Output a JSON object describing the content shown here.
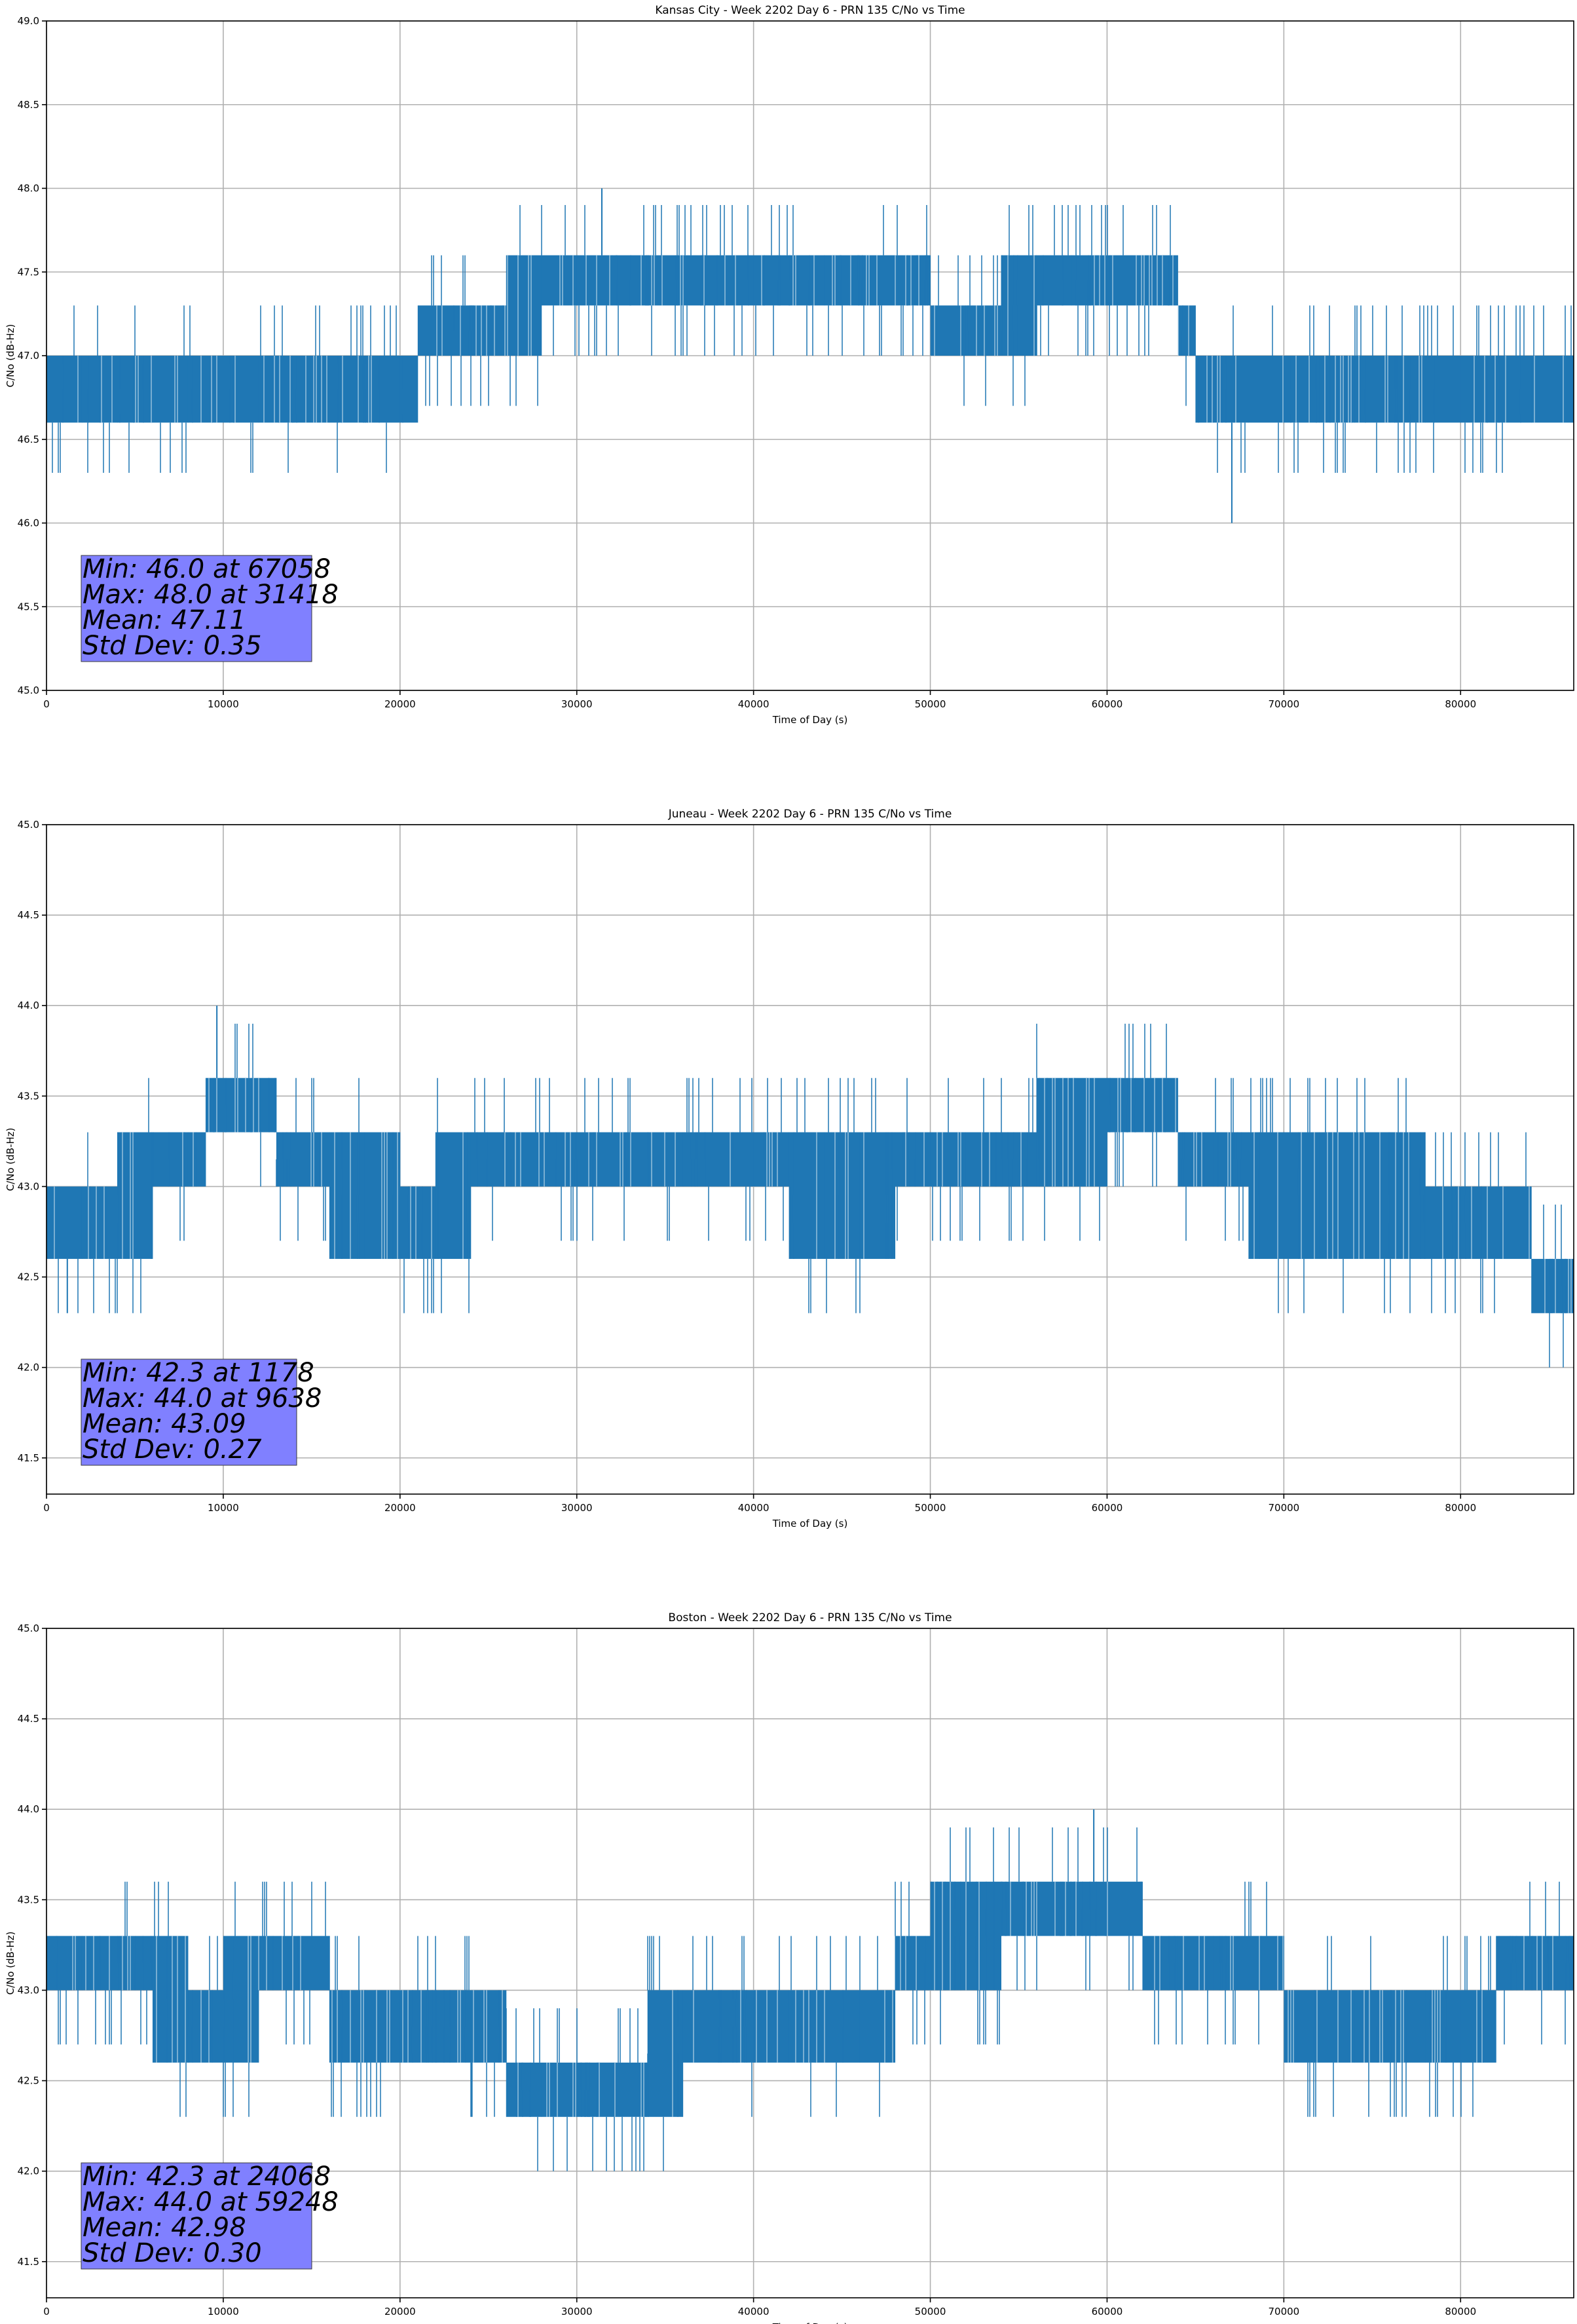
{
  "chart_data": [
    {
      "type": "line",
      "title": "Kansas City - Week 2202 Day 6 - PRN 135 C/No vs Time",
      "xlabel": "Time of Day (s)",
      "ylabel": "C/No (dB-Hz)",
      "xlim": [
        0,
        86400
      ],
      "ylim": [
        45.0,
        49.0
      ],
      "xticks": [
        "0",
        "10000",
        "20000",
        "30000",
        "40000",
        "50000",
        "60000",
        "70000",
        "80000"
      ],
      "yticks": [
        "45.0",
        "45.5",
        "46.0",
        "46.5",
        "47.0",
        "47.5",
        "48.0",
        "48.5",
        "49.0"
      ],
      "grid": true,
      "line_color": "#1f77b4",
      "series": [
        {
          "x": [
            0,
            2000,
            4000,
            6000,
            8000,
            10000,
            12000,
            14000,
            16000,
            18000,
            20000,
            21000,
            22000,
            24000,
            26000,
            28000,
            30000,
            32000,
            34000,
            36000,
            38000,
            40000,
            42000,
            44000,
            46000,
            48000,
            50000,
            52000,
            54000,
            56000,
            58000,
            60000,
            62000,
            64000,
            65000,
            66000,
            68000,
            70000,
            72000,
            74000,
            76000,
            78000,
            80000,
            82000,
            84000,
            86400
          ],
          "y_low": [
            46.6,
            46.6,
            46.6,
            46.6,
            46.6,
            46.6,
            46.6,
            46.6,
            46.6,
            46.6,
            46.6,
            47.0,
            47.0,
            47.0,
            47.0,
            47.3,
            47.3,
            47.3,
            47.3,
            47.3,
            47.3,
            47.3,
            47.3,
            47.3,
            47.3,
            47.3,
            47.0,
            47.0,
            47.0,
            47.3,
            47.3,
            47.3,
            47.3,
            47.0,
            46.6,
            46.6,
            46.6,
            46.6,
            46.6,
            46.6,
            46.6,
            46.6,
            46.6,
            46.6,
            46.6,
            46.6
          ],
          "y_high": [
            47.0,
            47.0,
            47.0,
            47.0,
            47.0,
            47.0,
            47.0,
            47.0,
            47.0,
            47.0,
            47.0,
            47.3,
            47.3,
            47.3,
            47.6,
            47.6,
            47.6,
            47.6,
            47.6,
            47.6,
            47.6,
            47.6,
            47.6,
            47.6,
            47.6,
            47.6,
            47.3,
            47.3,
            47.6,
            47.6,
            47.6,
            47.6,
            47.6,
            47.3,
            47.0,
            47.0,
            47.0,
            47.0,
            47.0,
            47.0,
            47.0,
            47.0,
            47.0,
            47.0,
            47.0,
            47.0
          ]
        }
      ],
      "stats": {
        "min_label": "Min: 46.0 at 67058",
        "max_label": "Max: 48.0 at 31418",
        "mean_label": "Mean: 47.11",
        "std_label": "Std Dev: 0.35",
        "min_value": 46.0,
        "min_time": 67058,
        "max_value": 48.0,
        "max_time": 31418,
        "mean": 47.11,
        "std": 0.35
      },
      "stats_box_color": "#8080ff"
    },
    {
      "type": "line",
      "title": "Juneau - Week 2202 Day 6 - PRN 135 C/No vs Time",
      "xlabel": "Time of Day (s)",
      "ylabel": "C/No (dB-Hz)",
      "xlim": [
        0,
        86400
      ],
      "ylim": [
        41.3,
        45.0
      ],
      "xticks": [
        "0",
        "10000",
        "20000",
        "30000",
        "40000",
        "50000",
        "60000",
        "70000",
        "80000"
      ],
      "yticks": [
        "41.5",
        "42.0",
        "42.5",
        "43.0",
        "43.5",
        "44.0",
        "44.5",
        "45.0"
      ],
      "grid": true,
      "line_color": "#1f77b4",
      "series": [
        {
          "x": [
            0,
            2000,
            4000,
            6000,
            8000,
            9000,
            10000,
            12000,
            13000,
            14000,
            16000,
            18000,
            20000,
            22000,
            24000,
            26000,
            28000,
            30000,
            32000,
            34000,
            36000,
            38000,
            40000,
            42000,
            44000,
            46000,
            48000,
            50000,
            52000,
            54000,
            56000,
            58000,
            60000,
            62000,
            64000,
            66000,
            68000,
            70000,
            72000,
            74000,
            76000,
            78000,
            80000,
            82000,
            84000,
            86400
          ],
          "y_low": [
            42.6,
            42.6,
            42.6,
            43.0,
            43.0,
            43.3,
            43.3,
            43.3,
            43.0,
            43.0,
            42.6,
            42.6,
            42.6,
            42.6,
            43.0,
            43.0,
            43.0,
            43.0,
            43.0,
            43.0,
            43.0,
            43.0,
            43.0,
            42.6,
            42.6,
            42.6,
            43.0,
            43.0,
            43.0,
            43.0,
            43.0,
            43.0,
            43.3,
            43.3,
            43.0,
            43.0,
            42.6,
            42.6,
            42.6,
            42.6,
            42.6,
            42.6,
            42.6,
            42.6,
            42.3,
            42.3
          ],
          "y_high": [
            43.0,
            43.0,
            43.3,
            43.3,
            43.3,
            43.6,
            43.6,
            43.6,
            43.3,
            43.3,
            43.3,
            43.3,
            43.0,
            43.3,
            43.3,
            43.3,
            43.3,
            43.3,
            43.3,
            43.3,
            43.3,
            43.3,
            43.3,
            43.3,
            43.3,
            43.3,
            43.3,
            43.3,
            43.3,
            43.3,
            43.6,
            43.6,
            43.6,
            43.6,
            43.3,
            43.3,
            43.3,
            43.3,
            43.3,
            43.3,
            43.3,
            43.0,
            43.0,
            43.0,
            42.6,
            42.6
          ]
        }
      ],
      "stats": {
        "min_label": "Min: 42.3 at 1178",
        "max_label": "Max: 44.0 at 9638",
        "mean_label": "Mean: 43.09",
        "std_label": "Std Dev: 0.27",
        "min_value": 42.3,
        "min_time": 1178,
        "max_value": 44.0,
        "max_time": 9638,
        "mean": 43.09,
        "std": 0.27
      },
      "stats_box_color": "#8080ff"
    },
    {
      "type": "line",
      "title": "Boston - Week 2202 Day 6 - PRN 135 C/No vs Time",
      "xlabel": "Time of Day (s)",
      "ylabel": "C/No (dB-Hz)",
      "xlim": [
        0,
        86400
      ],
      "ylim": [
        41.3,
        45.0
      ],
      "xticks": [
        "0",
        "10000",
        "20000",
        "30000",
        "40000",
        "50000",
        "60000",
        "70000",
        "80000"
      ],
      "yticks": [
        "41.5",
        "42.0",
        "42.5",
        "43.0",
        "43.5",
        "44.0",
        "44.5",
        "45.0"
      ],
      "grid": true,
      "line_color": "#1f77b4",
      "series": [
        {
          "x": [
            0,
            2000,
            4000,
            6000,
            8000,
            10000,
            12000,
            14000,
            16000,
            18000,
            20000,
            22000,
            24000,
            26000,
            28000,
            30000,
            32000,
            34000,
            36000,
            38000,
            40000,
            42000,
            44000,
            46000,
            48000,
            50000,
            52000,
            54000,
            56000,
            58000,
            60000,
            62000,
            64000,
            66000,
            68000,
            70000,
            72000,
            74000,
            76000,
            78000,
            80000,
            82000,
            84000,
            86400
          ],
          "y_low": [
            43.0,
            43.0,
            43.0,
            42.6,
            42.6,
            42.6,
            43.0,
            43.0,
            42.6,
            42.6,
            42.6,
            42.6,
            42.6,
            42.3,
            42.3,
            42.3,
            42.3,
            42.3,
            42.6,
            42.6,
            42.6,
            42.6,
            42.6,
            42.6,
            43.0,
            43.0,
            43.0,
            43.3,
            43.3,
            43.3,
            43.3,
            43.0,
            43.0,
            43.0,
            43.0,
            42.6,
            42.6,
            42.6,
            42.6,
            42.6,
            42.6,
            43.0,
            43.0,
            43.0
          ],
          "y_high": [
            43.3,
            43.3,
            43.3,
            43.3,
            43.0,
            43.3,
            43.3,
            43.3,
            43.0,
            43.0,
            43.0,
            43.0,
            43.0,
            42.6,
            42.6,
            42.6,
            42.6,
            43.0,
            43.0,
            43.0,
            43.0,
            43.0,
            43.0,
            43.0,
            43.3,
            43.6,
            43.6,
            43.6,
            43.6,
            43.6,
            43.6,
            43.3,
            43.3,
            43.3,
            43.3,
            43.0,
            43.0,
            43.0,
            43.0,
            43.0,
            43.0,
            43.3,
            43.3,
            43.3
          ]
        }
      ],
      "stats": {
        "min_label": "Min: 42.3 at 24068",
        "max_label": "Max: 44.0 at 59248",
        "mean_label": "Mean: 42.98",
        "std_label": "Std Dev: 0.30",
        "min_value": 42.3,
        "min_time": 24068,
        "max_value": 44.0,
        "max_time": 59248,
        "mean": 42.98,
        "std": 0.3
      },
      "stats_box_color": "#8080ff"
    }
  ]
}
